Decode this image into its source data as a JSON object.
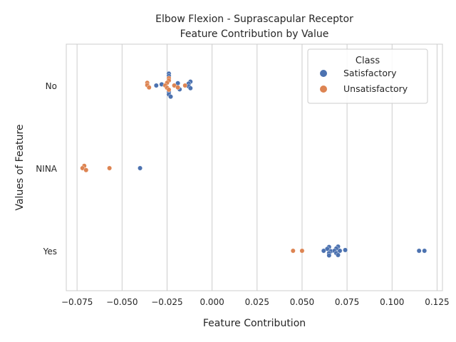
{
  "chart_data": {
    "type": "scatter",
    "title": "Elbow Flexion - Suprascapular Receptor",
    "subtitle": "Feature Contribution by Value",
    "xlabel": "Feature Contribution",
    "ylabel": "Values of Feature",
    "categories": [
      "No",
      "NINA",
      "Yes"
    ],
    "xlim": [
      -0.081,
      0.128
    ],
    "xticks": [
      -0.075,
      -0.05,
      -0.025,
      0.0,
      0.025,
      0.05,
      0.075,
      0.1,
      0.125
    ],
    "xtick_labels": [
      "−0.075",
      "−0.050",
      "−0.025",
      "0.000",
      "0.025",
      "0.050",
      "0.075",
      "0.100",
      "0.125"
    ],
    "grid": true,
    "legend": {
      "title": "Class",
      "placement": "top-right"
    },
    "series": [
      {
        "name": "Satisfactory",
        "color": "#4c72b0",
        "points": [
          {
            "category": "No",
            "x": -0.024,
            "y": 0.31
          },
          {
            "category": "No",
            "x": -0.024,
            "y": 0.25
          },
          {
            "category": "No",
            "x": -0.012,
            "y": 0.1
          },
          {
            "category": "No",
            "x": -0.013,
            "y": 0.05
          },
          {
            "category": "No",
            "x": -0.019,
            "y": 0.06
          },
          {
            "category": "No",
            "x": -0.028,
            "y": 0.03
          },
          {
            "category": "No",
            "x": -0.031,
            "y": 0.0
          },
          {
            "category": "No",
            "x": -0.013,
            "y": -0.02
          },
          {
            "category": "No",
            "x": -0.012,
            "y": -0.07
          },
          {
            "category": "No",
            "x": -0.018,
            "y": -0.1
          },
          {
            "category": "No",
            "x": -0.024,
            "y": -0.17
          },
          {
            "category": "No",
            "x": -0.024,
            "y": -0.23
          },
          {
            "category": "No",
            "x": -0.023,
            "y": -0.29
          },
          {
            "category": "NINA",
            "x": -0.04,
            "y": 0.0
          },
          {
            "category": "Yes",
            "x": 0.065,
            "y": 0.1
          },
          {
            "category": "Yes",
            "x": 0.07,
            "y": 0.11
          },
          {
            "category": "Yes",
            "x": 0.064,
            "y": 0.05
          },
          {
            "category": "Yes",
            "x": 0.069,
            "y": 0.06
          },
          {
            "category": "Yes",
            "x": 0.062,
            "y": 0.0
          },
          {
            "category": "Yes",
            "x": 0.066,
            "y": -0.01
          },
          {
            "category": "Yes",
            "x": 0.068,
            "y": 0.0
          },
          {
            "category": "Yes",
            "x": 0.071,
            "y": 0.0
          },
          {
            "category": "Yes",
            "x": 0.074,
            "y": 0.02
          },
          {
            "category": "Yes",
            "x": 0.065,
            "y": -0.06
          },
          {
            "category": "Yes",
            "x": 0.069,
            "y": -0.06
          },
          {
            "category": "Yes",
            "x": 0.07,
            "y": -0.11
          },
          {
            "category": "Yes",
            "x": 0.065,
            "y": -0.12
          },
          {
            "category": "Yes",
            "x": 0.115,
            "y": 0.0
          },
          {
            "category": "Yes",
            "x": 0.118,
            "y": 0.0
          }
        ]
      },
      {
        "name": "Unsatisfactory",
        "color": "#dd8452",
        "points": [
          {
            "category": "No",
            "x": -0.024,
            "y": 0.19
          },
          {
            "category": "No",
            "x": -0.024,
            "y": 0.13
          },
          {
            "category": "No",
            "x": -0.025,
            "y": 0.07
          },
          {
            "category": "No",
            "x": -0.036,
            "y": 0.07
          },
          {
            "category": "No",
            "x": -0.036,
            "y": 0.01
          },
          {
            "category": "No",
            "x": -0.021,
            "y": 0.0
          },
          {
            "category": "No",
            "x": -0.026,
            "y": 0.0
          },
          {
            "category": "No",
            "x": -0.015,
            "y": 0.0
          },
          {
            "category": "No",
            "x": -0.035,
            "y": -0.05
          },
          {
            "category": "No",
            "x": -0.019,
            "y": -0.05
          },
          {
            "category": "No",
            "x": -0.025,
            "y": -0.06
          },
          {
            "category": "No",
            "x": -0.024,
            "y": -0.11
          },
          {
            "category": "NINA",
            "x": -0.071,
            "y": 0.06
          },
          {
            "category": "NINA",
            "x": -0.072,
            "y": 0.0
          },
          {
            "category": "NINA",
            "x": -0.07,
            "y": -0.05
          },
          {
            "category": "NINA",
            "x": -0.057,
            "y": 0.0
          },
          {
            "category": "Yes",
            "x": 0.045,
            "y": 0.0
          },
          {
            "category": "Yes",
            "x": 0.05,
            "y": 0.0
          }
        ]
      }
    ]
  }
}
